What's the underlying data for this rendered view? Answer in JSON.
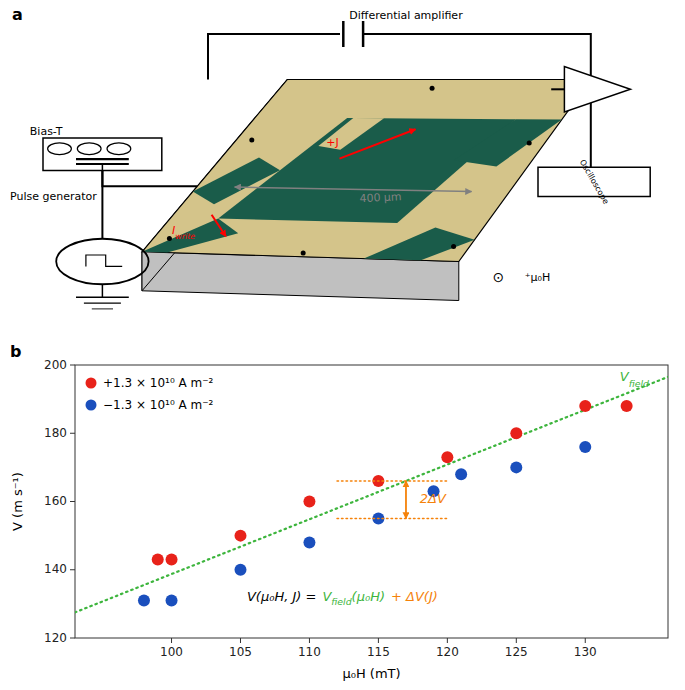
{
  "chart_data": [
    {
      "type": "diagram",
      "title": "a",
      "colors": [
        "#d4c48a",
        "#c0c0c0",
        "#1a5c4a"
      ],
      "annotations": [
        {
          "text": "Differential amplifier"
        },
        {
          "text": "Bias-T"
        },
        {
          "text": "Pulse generator"
        },
        {
          "text": "Oscilloscope"
        },
        {
          "text": "400 μm",
          "color": "#808080"
        },
        {
          "text": "+J",
          "color": "red"
        },
        {
          "text": "⊙"
        },
        {
          "text": "⁺μ₀H"
        },
        {
          "text": "Iwrite",
          "color": "red"
        }
      ]
    },
    {
      "type": "scatter",
      "title": "b",
      "xlabel": "μ₀H (mT)",
      "ylabel": "V (m s⁻¹)",
      "xlim": [
        93,
        136
      ],
      "ylim": [
        120,
        200
      ],
      "xticks": [
        100,
        105,
        110,
        115,
        120,
        125,
        130
      ],
      "yticks": [
        120,
        140,
        160,
        180,
        200
      ],
      "legend": "upper left",
      "series": [
        {
          "name": "+1.3 × 10¹⁰ A m⁻²",
          "color": "#e8221a",
          "marker": "circle",
          "x": [
            99,
            100,
            105,
            110,
            115,
            120,
            125,
            130,
            133
          ],
          "values": [
            143,
            143,
            150,
            160,
            166,
            173,
            180,
            188,
            188
          ]
        },
        {
          "name": "−1.3 × 10¹⁰ A m⁻²",
          "color": "#1a4fbd",
          "marker": "circle",
          "x": [
            98,
            100,
            105,
            110,
            115,
            119,
            121,
            125,
            130
          ],
          "values": [
            131,
            131,
            140,
            148,
            155,
            163,
            168,
            170,
            176
          ]
        },
        {
          "type": "line",
          "line_style": "dotted",
          "color": "#3db53d",
          "x": [
            93,
            136
          ],
          "values": [
            127.5,
            196.5
          ]
        }
      ],
      "annotations": [
        {
          "text": "2ΔV",
          "color": "#f5820a",
          "x": 115,
          "y1": 166,
          "y2": 155
        },
        {
          "text": "Vfield",
          "color": "#3db53d",
          "x": 132.5,
          "y": 194.5
        },
        {
          "text": "V(μ₀H, J) =",
          "color": "black"
        },
        {
          "text": "Vfield(μ₀H)",
          "color": "#3db53d"
        },
        {
          "text": "+ ΔV(J)",
          "color": "#f5820a"
        }
      ]
    }
  ]
}
